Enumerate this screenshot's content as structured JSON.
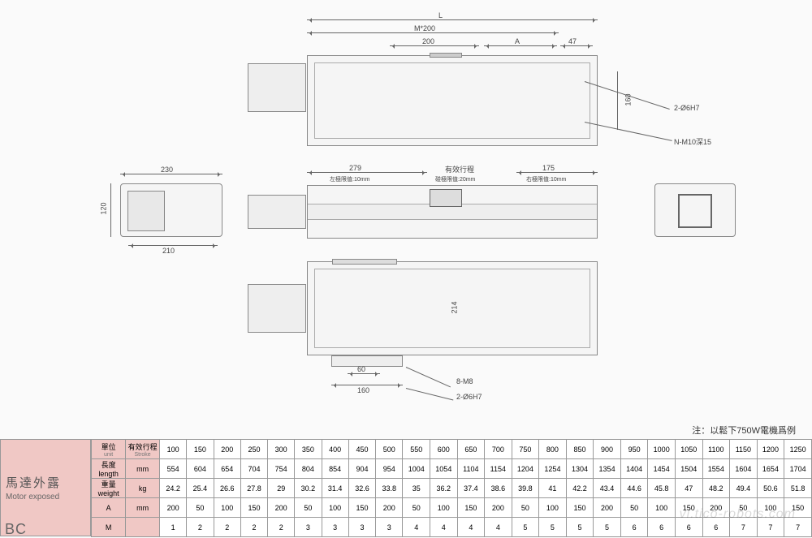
{
  "drawing": {
    "top": {
      "dims": {
        "L": "L",
        "M200": "M*200",
        "d200": "200",
        "A": "A",
        "d47": "47",
        "h160": "160"
      },
      "callouts": {
        "c1": "2-Ø6H7",
        "c2": "N-M10深15"
      }
    },
    "left": {
      "w230": "230",
      "w210": "210",
      "h120": "120"
    },
    "mid": {
      "d279": "279",
      "d175": "175",
      "t1": "左極限值:10mm",
      "t2": "有效行程",
      "t2b": "碰極限值:20mm",
      "t3": "右極限值:10mm"
    },
    "bottom": {
      "h214": "214",
      "d60": "60",
      "d160": "160",
      "c1": "8-M8",
      "c2": "2-Ø6H7"
    }
  },
  "note": "注：以鬆下750W電機爲例",
  "label": {
    "cn": "馬達外露",
    "en": "Motor exposed",
    "bc": "BC"
  },
  "table": {
    "headers": {
      "unit_cn": "單位",
      "unit_en": "unit",
      "stroke_cn": "有效行程",
      "stroke_en": "Stroke",
      "length": "長度 length",
      "weight": "重量 weight",
      "A": "A",
      "M": "M"
    },
    "strokes": [
      "100",
      "150",
      "200",
      "250",
      "300",
      "350",
      "400",
      "450",
      "500",
      "550",
      "600",
      "650",
      "700",
      "750",
      "800",
      "850",
      "900",
      "950",
      "1000",
      "1050",
      "1100",
      "1150",
      "1200",
      "1250"
    ],
    "rows": {
      "length_unit": "mm",
      "length": [
        "554",
        "604",
        "654",
        "704",
        "754",
        "804",
        "854",
        "904",
        "954",
        "1004",
        "1054",
        "1104",
        "1154",
        "1204",
        "1254",
        "1304",
        "1354",
        "1404",
        "1454",
        "1504",
        "1554",
        "1604",
        "1654",
        "1704"
      ],
      "weight_unit": "kg",
      "weight": [
        "24.2",
        "25.4",
        "26.6",
        "27.8",
        "29",
        "30.2",
        "31.4",
        "32.6",
        "33.8",
        "35",
        "36.2",
        "37.4",
        "38.6",
        "39.8",
        "41",
        "42.2",
        "43.4",
        "44.6",
        "45.8",
        "47",
        "48.2",
        "49.4",
        "50.6",
        "51.8"
      ],
      "A_unit": "mm",
      "A": [
        "200",
        "50",
        "100",
        "150",
        "200",
        "50",
        "100",
        "150",
        "200",
        "50",
        "100",
        "150",
        "200",
        "50",
        "100",
        "150",
        "200",
        "50",
        "100",
        "150",
        "200",
        "50",
        "100",
        "150"
      ],
      "M_unit": "",
      "M": [
        "1",
        "2",
        "2",
        "2",
        "2",
        "3",
        "3",
        "3",
        "3",
        "4",
        "4",
        "4",
        "4",
        "5",
        "5",
        "5",
        "5",
        "6",
        "6",
        "6",
        "6",
        "7",
        "7",
        "7"
      ]
    }
  },
  "watermark": "vi.tico-robots.com",
  "colors": {
    "header_bg": "#f0c8c5",
    "border": "#999999",
    "text": "#444444"
  }
}
